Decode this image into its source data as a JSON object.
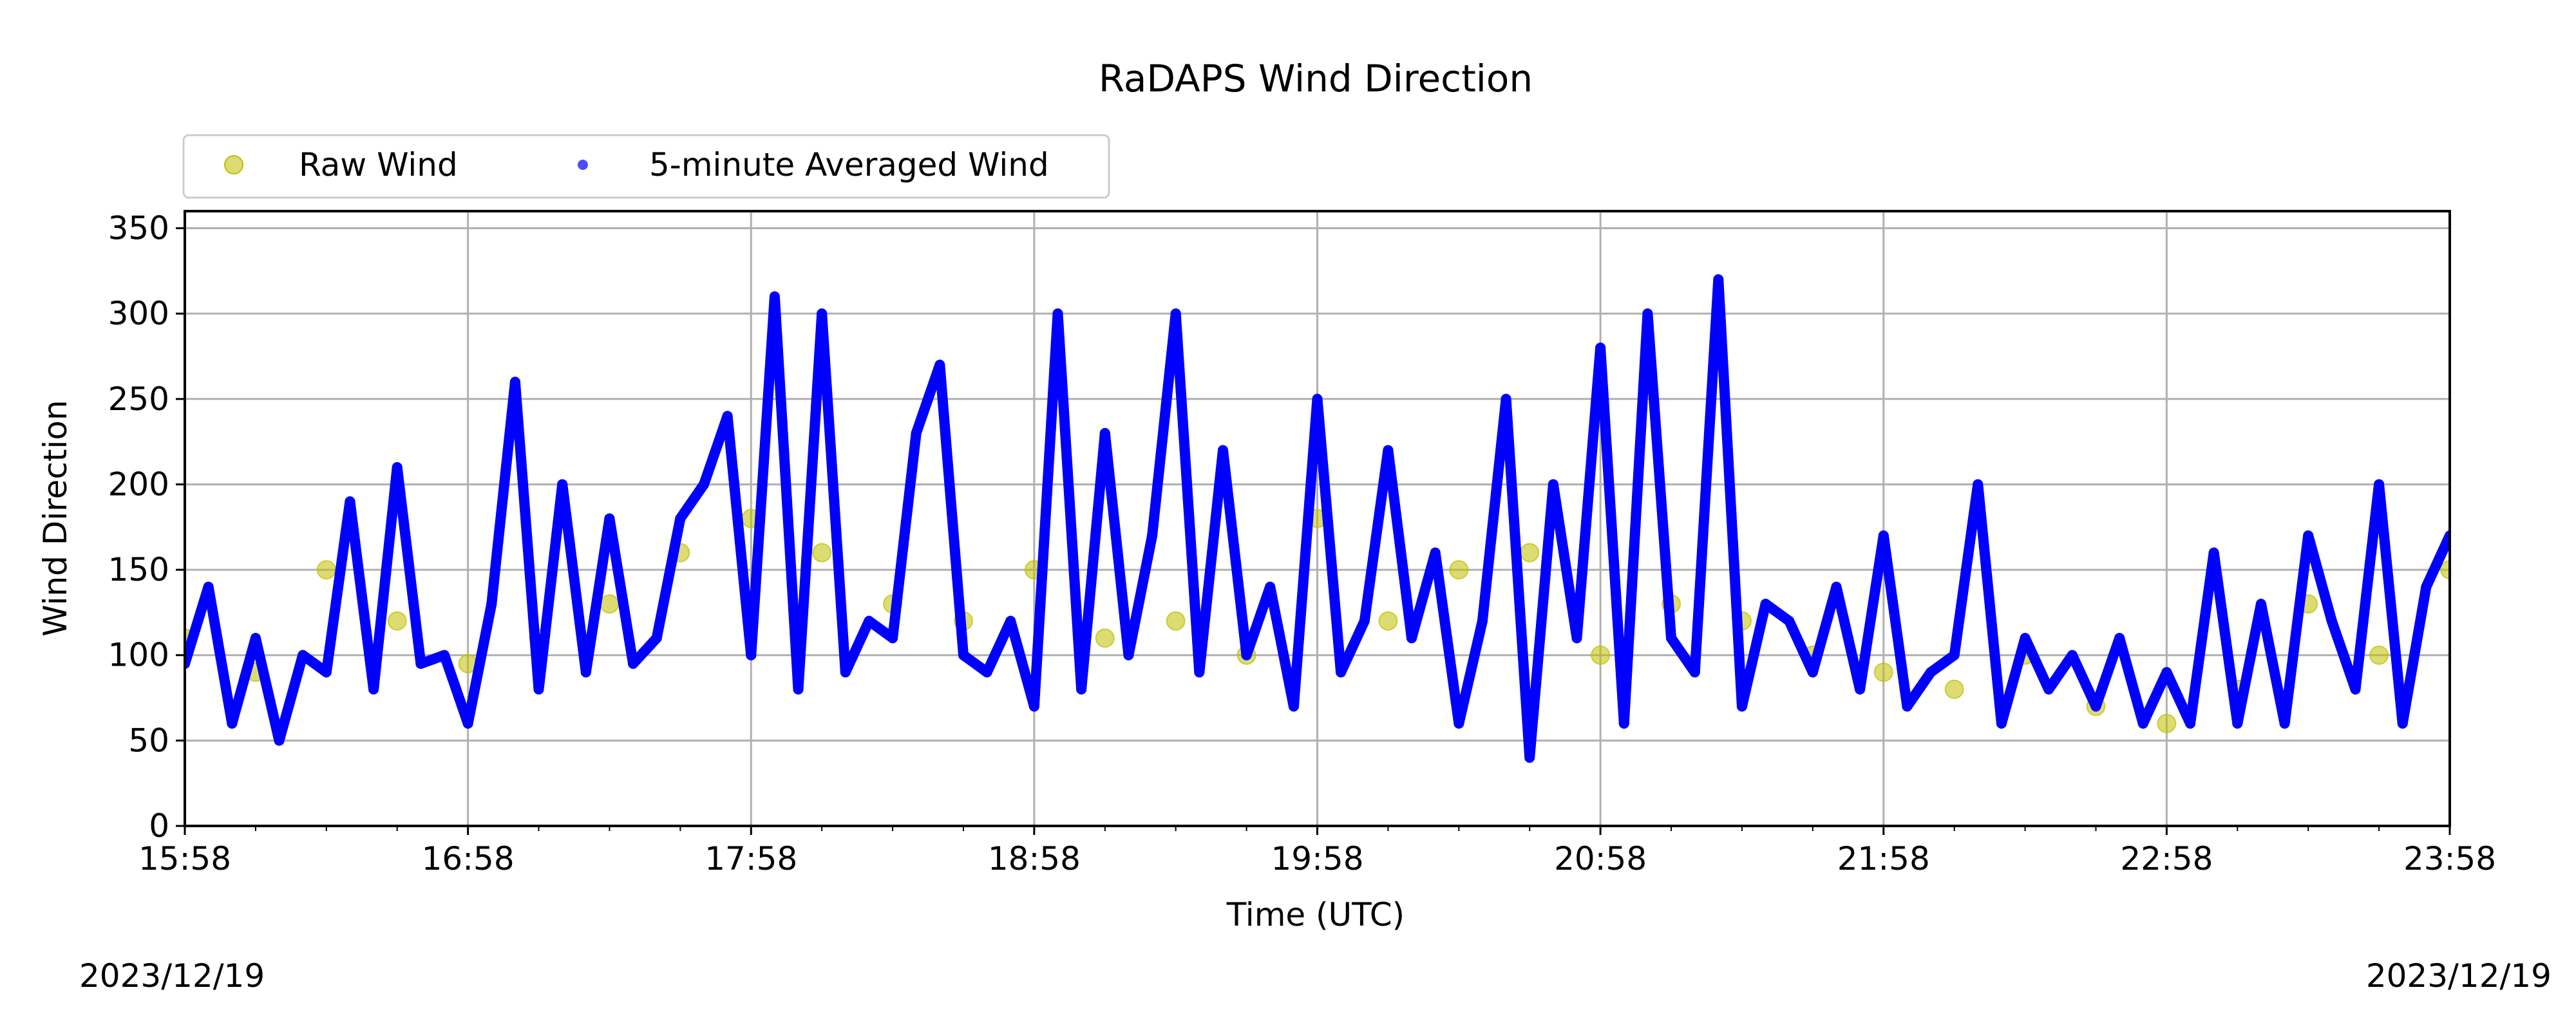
{
  "chart_data": {
    "type": "scatter",
    "title": "RaDAPS Wind Direction",
    "xlabel": "Time (UTC)",
    "ylabel": "Wind Direction",
    "x_tick_labels": [
      "15:58",
      "16:58",
      "17:58",
      "18:58",
      "19:58",
      "20:58",
      "21:58",
      "22:58",
      "23:58"
    ],
    "y_ticks": [
      0,
      50,
      100,
      150,
      200,
      250,
      300,
      350
    ],
    "xlim": [
      "15:58",
      "23:58"
    ],
    "ylim": [
      0,
      360
    ],
    "grid": true,
    "legend_position": "top-left, above plot",
    "date_left": "2023/12/19",
    "date_right": "2023/12/19",
    "series": [
      {
        "name": "Raw Wind",
        "color": "#bfbf00",
        "marker": "circle",
        "x": [
          "15:58",
          "16:13",
          "16:28",
          "16:43",
          "16:58",
          "17:13",
          "17:28",
          "17:43",
          "17:58",
          "18:13",
          "18:28",
          "18:43",
          "18:58",
          "19:13",
          "19:28",
          "19:43",
          "19:58",
          "20:13",
          "20:28",
          "20:43",
          "20:58",
          "21:13",
          "21:28",
          "21:43",
          "21:58",
          "22:13",
          "22:28",
          "22:43",
          "22:58",
          "23:13",
          "23:28",
          "23:43",
          "23:58"
        ],
        "y": [
          110,
          90,
          150,
          120,
          95,
          110,
          130,
          160,
          180,
          160,
          130,
          120,
          150,
          110,
          120,
          100,
          180,
          120,
          150,
          160,
          100,
          130,
          120,
          100,
          90,
          80,
          100,
          70,
          60,
          80,
          130,
          100,
          150
        ]
      },
      {
        "name": "5-minute Averaged Wind",
        "color": "#0000ff",
        "marker": "circle",
        "x": [
          "15:58",
          "16:03",
          "16:08",
          "16:13",
          "16:18",
          "16:23",
          "16:28",
          "16:33",
          "16:38",
          "16:43",
          "16:48",
          "16:53",
          "16:58",
          "17:03",
          "17:08",
          "17:13",
          "17:18",
          "17:23",
          "17:28",
          "17:33",
          "17:38",
          "17:43",
          "17:48",
          "17:53",
          "17:58",
          "18:03",
          "18:08",
          "18:13",
          "18:18",
          "18:23",
          "18:28",
          "18:33",
          "18:38",
          "18:43",
          "18:48",
          "18:53",
          "18:58",
          "19:03",
          "19:08",
          "19:13",
          "19:18",
          "19:23",
          "19:28",
          "19:33",
          "19:38",
          "19:43",
          "19:48",
          "19:53",
          "19:58",
          "20:03",
          "20:08",
          "20:13",
          "20:18",
          "20:23",
          "20:28",
          "20:33",
          "20:38",
          "20:43",
          "20:48",
          "20:53",
          "20:58",
          "21:03",
          "21:08",
          "21:13",
          "21:18",
          "21:23",
          "21:28",
          "21:33",
          "21:38",
          "21:43",
          "21:48",
          "21:53",
          "21:58",
          "22:03",
          "22:08",
          "22:13",
          "22:18",
          "22:23",
          "22:28",
          "22:33",
          "22:38",
          "22:43",
          "22:48",
          "22:53",
          "22:58",
          "23:03",
          "23:08",
          "23:13",
          "23:18",
          "23:23",
          "23:28",
          "23:33",
          "23:38",
          "23:43",
          "23:48",
          "23:53",
          "23:58"
        ],
        "y": [
          95,
          140,
          60,
          110,
          50,
          100,
          90,
          190,
          80,
          210,
          95,
          100,
          60,
          130,
          260,
          80,
          200,
          90,
          180,
          95,
          110,
          180,
          200,
          240,
          100,
          310,
          80,
          300,
          90,
          120,
          110,
          230,
          270,
          100,
          90,
          120,
          70,
          300,
          80,
          230,
          100,
          170,
          300,
          90,
          220,
          100,
          140,
          70,
          250,
          90,
          120,
          220,
          110,
          160,
          60,
          120,
          250,
          40,
          200,
          110,
          280,
          60,
          300,
          110,
          90,
          320,
          70,
          130,
          120,
          90,
          140,
          80,
          170,
          70,
          90,
          100,
          200,
          60,
          110,
          80,
          100,
          70,
          110,
          60,
          90,
          60,
          160,
          60,
          130,
          60,
          170,
          120,
          80,
          200,
          60,
          140,
          170
        ]
      }
    ]
  }
}
